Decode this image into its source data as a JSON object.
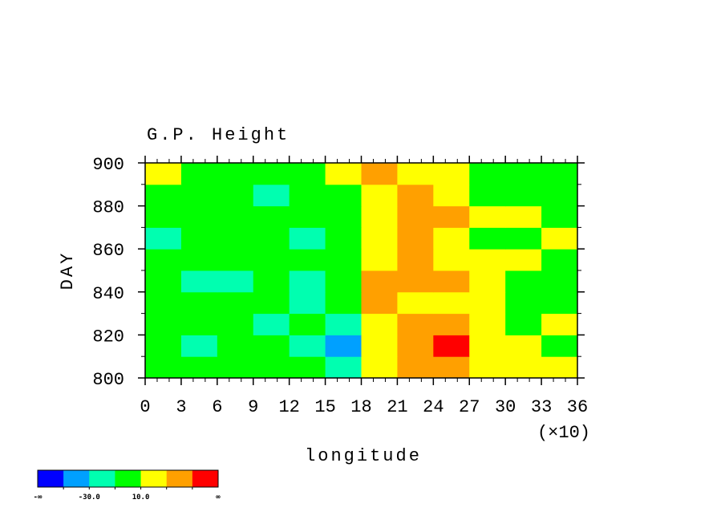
{
  "chart_data": {
    "type": "heatmap",
    "title": "G.P. Height",
    "x_label": "longitude",
    "x_multiplier": "(×10)",
    "y_label": "DAY",
    "xlim": [
      0,
      36
    ],
    "xticks": [
      0,
      3,
      6,
      9,
      12,
      15,
      18,
      21,
      24,
      27,
      30,
      33,
      36
    ],
    "ylim": [
      800,
      900
    ],
    "yticks": [
      800,
      820,
      840,
      860,
      880,
      900
    ],
    "field": {
      "x": [
        1.5,
        4.5,
        7.5,
        10.5,
        13.5,
        16.5,
        19.5,
        22.5,
        25.5,
        28.5,
        31.5,
        34.5
      ],
      "y": [
        805,
        815,
        825,
        835,
        845,
        855,
        865,
        875,
        885,
        895
      ],
      "values": [
        [
          0,
          -5,
          5,
          0,
          -10,
          -15,
          15,
          35,
          30,
          20,
          10,
          15
        ],
        [
          -5,
          -15,
          0,
          -10,
          -20,
          -45,
          10,
          40,
          55,
          25,
          10,
          5
        ],
        [
          5,
          0,
          -5,
          -15,
          -10,
          -20,
          20,
          35,
          30,
          15,
          5,
          10
        ],
        [
          0,
          -10,
          -5,
          0,
          -15,
          -5,
          30,
          25,
          20,
          15,
          0,
          -10
        ],
        [
          -5,
          -20,
          -15,
          -10,
          -20,
          5,
          35,
          40,
          30,
          20,
          5,
          0
        ],
        [
          -10,
          -5,
          0,
          -5,
          -10,
          0,
          25,
          30,
          20,
          10,
          15,
          5
        ],
        [
          -15,
          -10,
          0,
          -5,
          -15,
          -5,
          20,
          30,
          15,
          0,
          5,
          10
        ],
        [
          0,
          5,
          -5,
          0,
          -10,
          0,
          25,
          35,
          30,
          15,
          10,
          5
        ],
        [
          5,
          -5,
          -10,
          -15,
          -5,
          5,
          20,
          30,
          10,
          0,
          -5,
          0
        ],
        [
          10,
          0,
          -5,
          0,
          -10,
          10,
          40,
          20,
          10,
          5,
          0,
          -5
        ]
      ]
    },
    "colorbar": {
      "colors": [
        "#0000ff",
        "#00a0ff",
        "#00ffb0",
        "#00ff00",
        "#ffff00",
        "#ffa000",
        "#ff0000"
      ],
      "bounds": [
        -50,
        -30,
        -10,
        10,
        30,
        50
      ],
      "ticks": [
        "-∞",
        {
          "value": -30,
          "label": "-30.0"
        },
        {
          "value": 10,
          "label": "10.0"
        },
        "∞"
      ]
    }
  }
}
